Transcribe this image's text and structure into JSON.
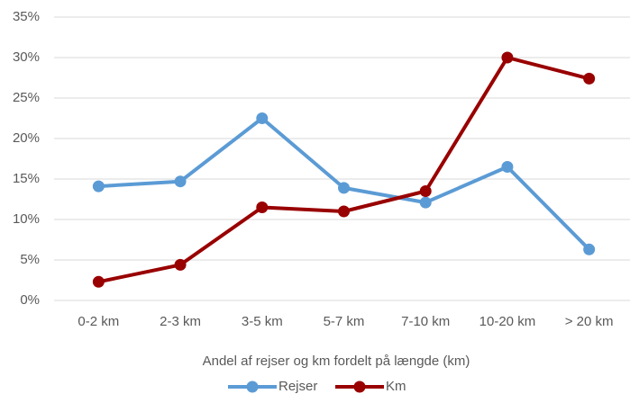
{
  "chart_data": {
    "type": "line",
    "x_label": "Andel af rejser og km fordelt på længde (km)",
    "categories": [
      "0-2 km",
      "2-3 km",
      "3-5 km",
      "5-7 km",
      "7-10 km",
      "10-20 km",
      "> 20 km"
    ],
    "series": [
      {
        "name": "Rejser",
        "color": "#5b9bd5",
        "values": [
          14.1,
          14.7,
          22.5,
          13.9,
          12.1,
          16.5,
          6.3
        ]
      },
      {
        "name": "Km",
        "color": "#990000",
        "values": [
          2.3,
          4.4,
          11.5,
          11.0,
          13.5,
          30.0,
          27.4
        ]
      }
    ],
    "ylim": [
      0,
      35
    ],
    "yticks": [
      {
        "value": 0,
        "label": "0%"
      },
      {
        "value": 5,
        "label": "5%"
      },
      {
        "value": 10,
        "label": "10%"
      },
      {
        "value": 15,
        "label": "15%"
      },
      {
        "value": 20,
        "label": "20%"
      },
      {
        "value": 25,
        "label": "25%"
      },
      {
        "value": 30,
        "label": "30%"
      },
      {
        "value": 35,
        "label": "35%"
      }
    ],
    "grid": true,
    "legend": "bottom"
  }
}
